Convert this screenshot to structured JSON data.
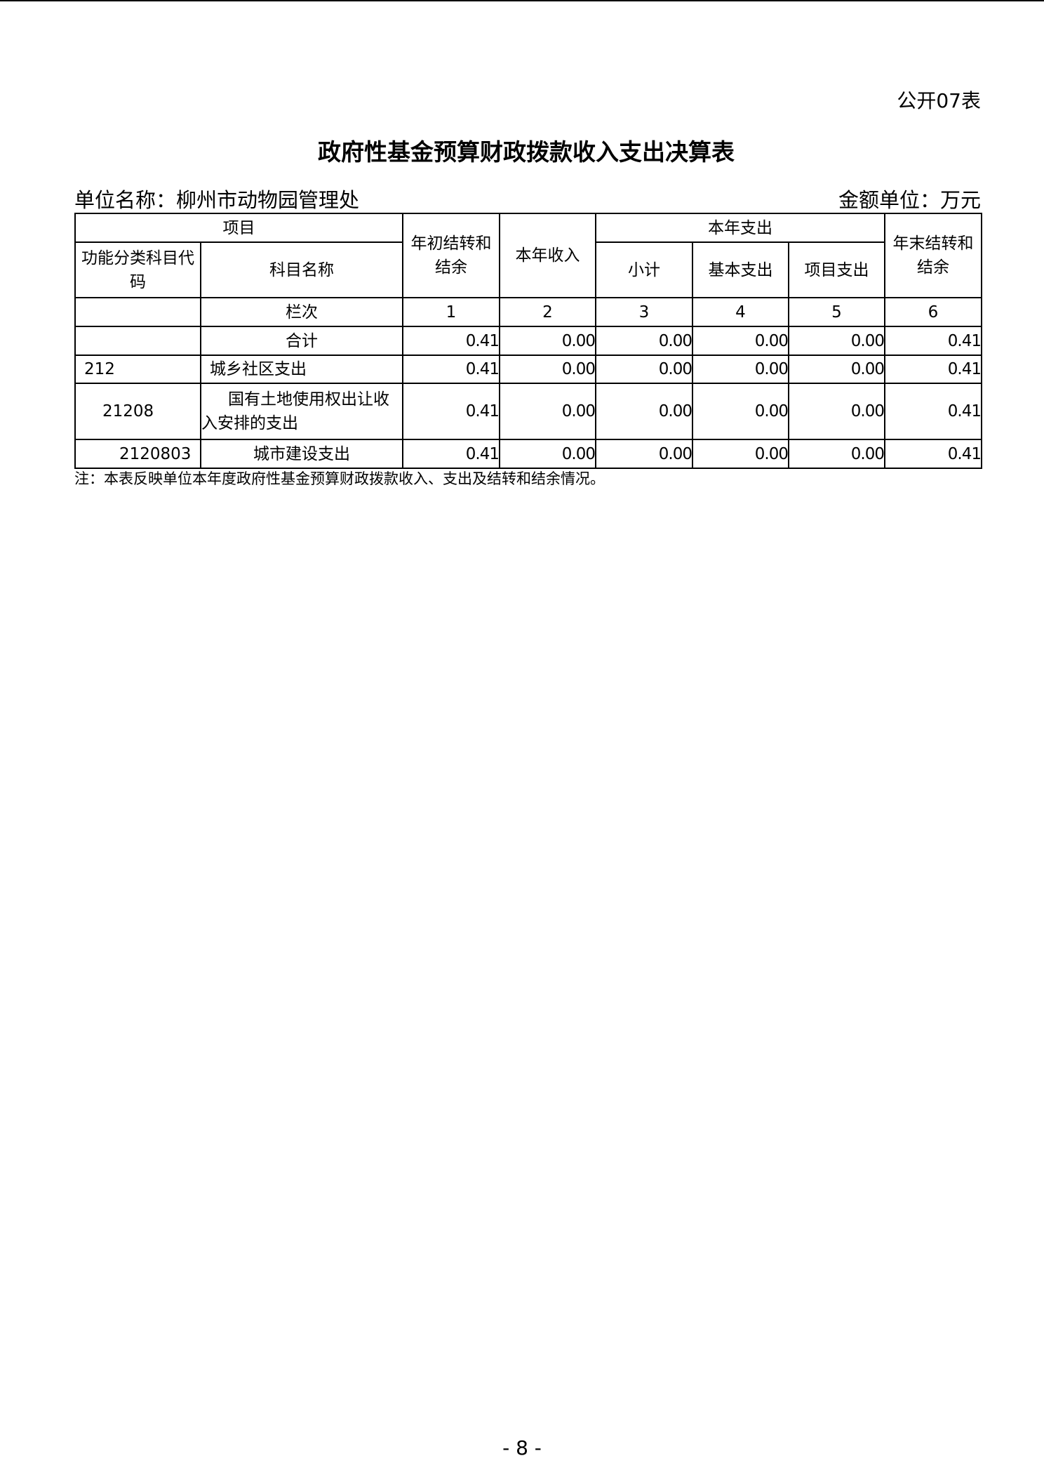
{
  "doc": {
    "code": "公开07表",
    "title": "政府性基金预算财政拨款收入支出决算表",
    "unit_name": "单位名称：柳州市动物园管理处",
    "amount_unit": "金额单位：万元",
    "note": "注：本表反映单位本年度政府性基金预算财政拨款收入、支出及结转和结余情况。",
    "page": "- 8 -"
  },
  "table": {
    "h": {
      "item": "项目",
      "code": "功能分类科目代码",
      "name": "科目名称",
      "begin": "年初结转和结余",
      "income": "本年收入",
      "expense": "本年支出",
      "subtotal": "小计",
      "basic": "基本支出",
      "project": "项目支出",
      "end": "年末结转和结余"
    },
    "colnum": {
      "label": "栏次",
      "c1": "1",
      "c2": "2",
      "c3": "3",
      "c4": "4",
      "c5": "5",
      "c6": "6"
    },
    "rows": [
      {
        "code": "",
        "name": "合计",
        "v": [
          "0.41",
          "0.00",
          "0.00",
          "0.00",
          "0.00",
          "0.41"
        ]
      },
      {
        "code": "212",
        "name": "城乡社区支出",
        "v": [
          "0.41",
          "0.00",
          "0.00",
          "0.00",
          "0.00",
          "0.41"
        ]
      },
      {
        "code": "21208",
        "name": "国有土地使用权出让收入安排的支出",
        "v": [
          "0.41",
          "0.00",
          "0.00",
          "0.00",
          "0.00",
          "0.41"
        ]
      },
      {
        "code": "2120803",
        "name": "城市建设支出",
        "v": [
          "0.41",
          "0.00",
          "0.00",
          "0.00",
          "0.00",
          "0.41"
        ]
      }
    ]
  }
}
